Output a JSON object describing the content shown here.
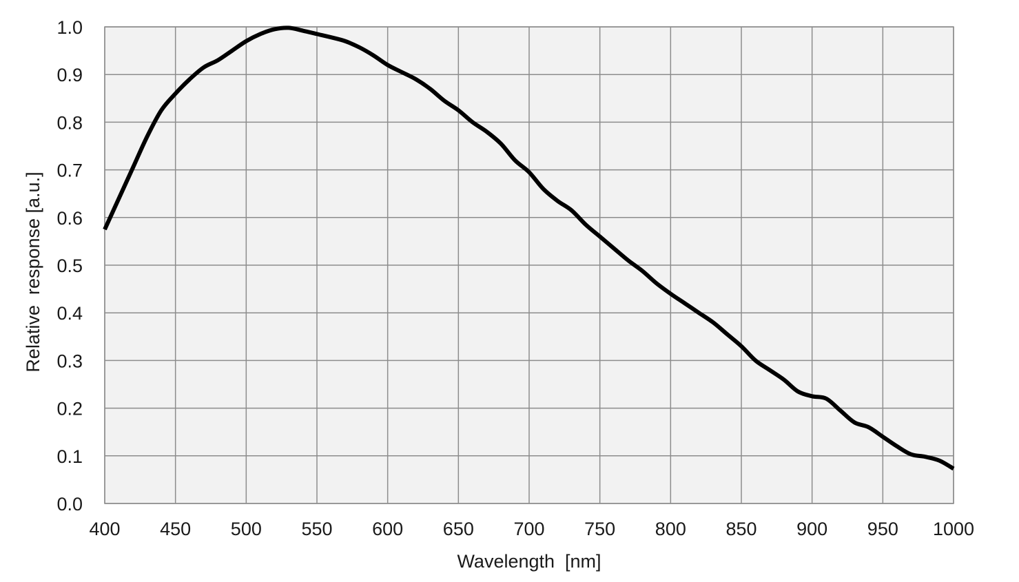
{
  "chart_data": {
    "type": "line",
    "title": "",
    "xlabel": "Wavelength  [nm]",
    "ylabel": "Relative  response [a.u.]",
    "xlim": [
      400,
      1000
    ],
    "ylim": [
      0.0,
      1.0
    ],
    "x_ticks": [
      "400",
      "450",
      "500",
      "550",
      "600",
      "650",
      "700",
      "750",
      "800",
      "850",
      "900",
      "950",
      "1000"
    ],
    "y_ticks": [
      "0.0",
      "0.1",
      "0.2",
      "0.3",
      "0.4",
      "0.5",
      "0.6",
      "0.7",
      "0.8",
      "0.9",
      "1.0"
    ],
    "grid": true,
    "legend": "none",
    "plot_background": "#f2f2f2",
    "grid_color": "#8c8c8c",
    "line_color": "#000000",
    "series": [
      {
        "x": [
          400,
          410,
          420,
          430,
          440,
          450,
          460,
          470,
          480,
          490,
          500,
          510,
          520,
          530,
          540,
          550,
          560,
          570,
          580,
          590,
          600,
          610,
          620,
          630,
          640,
          650,
          660,
          670,
          680,
          690,
          700,
          710,
          720,
          730,
          740,
          750,
          760,
          770,
          780,
          790,
          800,
          810,
          820,
          830,
          840,
          850,
          860,
          870,
          880,
          890,
          900,
          910,
          920,
          930,
          940,
          950,
          960,
          970,
          980,
          990,
          1000
        ],
        "y": [
          0.575,
          0.64,
          0.705,
          0.77,
          0.825,
          0.86,
          0.89,
          0.915,
          0.93,
          0.95,
          0.97,
          0.985,
          0.995,
          0.998,
          0.992,
          0.985,
          0.978,
          0.97,
          0.957,
          0.94,
          0.92,
          0.905,
          0.89,
          0.87,
          0.845,
          0.825,
          0.8,
          0.78,
          0.755,
          0.72,
          0.695,
          0.66,
          0.635,
          0.615,
          0.585,
          0.56,
          0.535,
          0.51,
          0.488,
          0.462,
          0.44,
          0.42,
          0.4,
          0.38,
          0.355,
          0.33,
          0.3,
          0.28,
          0.26,
          0.235,
          0.225,
          0.22,
          0.195,
          0.17,
          0.16,
          0.14,
          0.12,
          0.103,
          0.098,
          0.09,
          0.073
        ]
      }
    ]
  }
}
